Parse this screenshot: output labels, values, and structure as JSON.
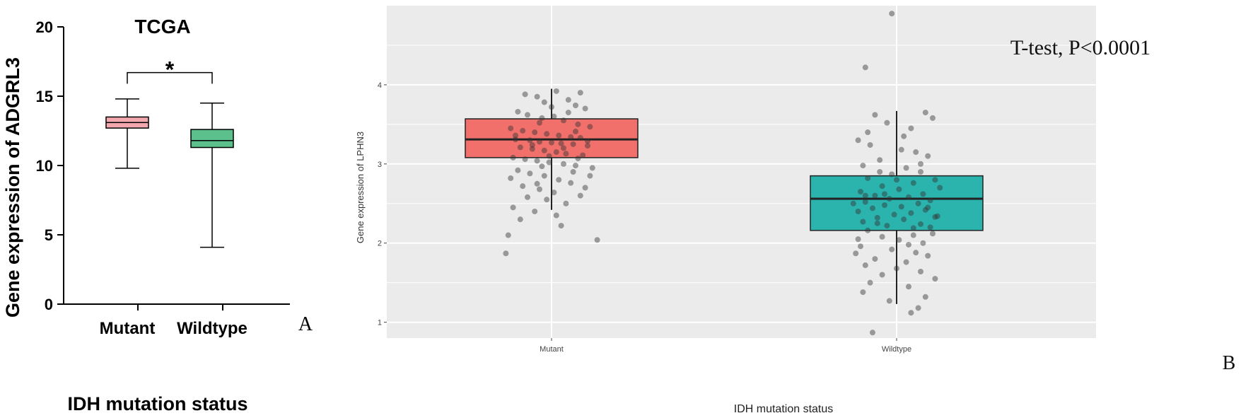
{
  "chart_data": [
    {
      "panel_label": "A",
      "type": "box",
      "title": "TCGA",
      "xlabel": "IDH mutation status",
      "ylabel": "Gene expression of ADGRL3",
      "ylim": [
        0,
        20
      ],
      "yticks": [
        0,
        5,
        10,
        15,
        20
      ],
      "categories": [
        "Mutant",
        "Wildtype"
      ],
      "boxes": [
        {
          "category": "Mutant",
          "min": 9.8,
          "q1": 12.7,
          "median": 13.1,
          "q3": 13.5,
          "max": 14.8,
          "color": "#f4a7ad"
        },
        {
          "category": "Wildtype",
          "min": 4.1,
          "q1": 11.3,
          "median": 11.8,
          "q3": 12.6,
          "max": 14.5,
          "color": "#5cc08c"
        }
      ],
      "significance": {
        "label": "*",
        "y": 16.7
      }
    },
    {
      "panel_label": "B",
      "type": "box",
      "annotation": "T-test, P<0.0001",
      "xlabel": "IDH mutation status",
      "ylabel": "Gene expression of LPHN3",
      "ylim": [
        0.8,
        5
      ],
      "yticks": [
        1,
        2,
        3,
        4
      ],
      "categories": [
        "Mutant",
        "Wildtype"
      ],
      "boxes": [
        {
          "category": "Mutant",
          "min": 2.42,
          "q1": 3.08,
          "median": 3.31,
          "q3": 3.57,
          "max": 3.95,
          "color": "#f1706c"
        },
        {
          "category": "Wildtype",
          "min": 1.23,
          "q1": 2.16,
          "median": 2.56,
          "q3": 2.85,
          "max": 3.67,
          "color": "#2bb3ae"
        }
      ],
      "grid": true,
      "background": "#ebebeb",
      "points": {
        "Mutant": [
          [
            -0.06,
            3.85
          ],
          [
            -0.03,
            3.78
          ],
          [
            0.02,
            3.92
          ],
          [
            0.07,
            3.81
          ],
          [
            0.1,
            3.74
          ],
          [
            0.14,
            3.7
          ],
          [
            -0.14,
            3.66
          ],
          [
            -0.1,
            3.62
          ],
          [
            -0.04,
            3.58
          ],
          [
            0.01,
            3.6
          ],
          [
            0.05,
            3.55
          ],
          [
            0.11,
            3.5
          ],
          [
            0.16,
            3.47
          ],
          [
            -0.17,
            3.45
          ],
          [
            -0.12,
            3.42
          ],
          [
            -0.07,
            3.4
          ],
          [
            -0.02,
            3.38
          ],
          [
            0.03,
            3.36
          ],
          [
            0.08,
            3.34
          ],
          [
            0.12,
            3.33
          ],
          [
            -0.15,
            3.31
          ],
          [
            -0.09,
            3.3
          ],
          [
            -0.05,
            3.28
          ],
          [
            0.0,
            3.27
          ],
          [
            0.04,
            3.26
          ],
          [
            0.09,
            3.25
          ],
          [
            0.15,
            3.23
          ],
          [
            -0.13,
            3.21
          ],
          [
            -0.08,
            3.19
          ],
          [
            -0.03,
            3.17
          ],
          [
            0.02,
            3.15
          ],
          [
            0.06,
            3.13
          ],
          [
            0.13,
            3.11
          ],
          [
            -0.16,
            3.08
          ],
          [
            -0.11,
            3.06
          ],
          [
            -0.06,
            3.04
          ],
          [
            -0.01,
            3.02
          ],
          [
            0.05,
            3.0
          ],
          [
            0.1,
            2.98
          ],
          [
            0.17,
            2.95
          ],
          [
            -0.14,
            2.92
          ],
          [
            -0.09,
            2.88
          ],
          [
            -0.03,
            2.85
          ],
          [
            0.03,
            2.8
          ],
          [
            0.08,
            2.76
          ],
          [
            -0.12,
            2.72
          ],
          [
            -0.05,
            2.68
          ],
          [
            0.01,
            2.64
          ],
          [
            0.14,
            2.7
          ],
          [
            -0.1,
            2.58
          ],
          [
            -0.02,
            2.55
          ],
          [
            0.06,
            2.5
          ],
          [
            -0.16,
            2.45
          ],
          [
            -0.07,
            2.4
          ],
          [
            0.02,
            2.35
          ],
          [
            -0.13,
            2.3
          ],
          [
            0.04,
            2.22
          ],
          [
            -0.18,
            2.1
          ],
          [
            0.19,
            2.04
          ],
          [
            -0.19,
            1.87
          ],
          [
            0.12,
            3.9
          ],
          [
            -0.11,
            3.88
          ],
          [
            0.0,
            3.72
          ],
          [
            0.07,
            3.65
          ],
          [
            -0.05,
            3.52
          ],
          [
            0.1,
            3.41
          ],
          [
            -0.15,
            3.36
          ],
          [
            0.15,
            3.29
          ],
          [
            -0.08,
            3.24
          ],
          [
            0.05,
            3.2
          ],
          [
            -0.01,
            3.1
          ],
          [
            0.11,
            3.07
          ],
          [
            -0.04,
            2.97
          ],
          [
            0.09,
            2.9
          ],
          [
            -0.17,
            2.82
          ],
          [
            0.16,
            2.85
          ],
          [
            -0.06,
            2.75
          ],
          [
            0.12,
            2.6
          ]
        ],
        "Wildtype": [
          [
            -0.02,
            4.9
          ],
          [
            -0.13,
            4.22
          ],
          [
            0.12,
            3.65
          ],
          [
            0.15,
            3.58
          ],
          [
            -0.09,
            3.62
          ],
          [
            -0.04,
            3.52
          ],
          [
            0.06,
            3.45
          ],
          [
            -0.16,
            3.3
          ],
          [
            -0.11,
            3.24
          ],
          [
            0.02,
            3.18
          ],
          [
            0.08,
            3.15
          ],
          [
            0.13,
            3.1
          ],
          [
            -0.07,
            3.05
          ],
          [
            -0.14,
            2.98
          ],
          [
            0.04,
            2.95
          ],
          [
            0.1,
            2.9
          ],
          [
            -0.02,
            2.87
          ],
          [
            -0.12,
            2.82
          ],
          [
            0.16,
            2.8
          ],
          [
            0.07,
            2.76
          ],
          [
            -0.06,
            2.72
          ],
          [
            0.01,
            2.68
          ],
          [
            -0.15,
            2.65
          ],
          [
            0.11,
            2.62
          ],
          [
            -0.09,
            2.6
          ],
          [
            0.05,
            2.58
          ],
          [
            -0.03,
            2.56
          ],
          [
            0.14,
            2.54
          ],
          [
            -0.13,
            2.52
          ],
          [
            0.09,
            2.5
          ],
          [
            -0.05,
            2.48
          ],
          [
            0.02,
            2.46
          ],
          [
            -0.1,
            2.44
          ],
          [
            0.12,
            2.42
          ],
          [
            -0.16,
            2.4
          ],
          [
            0.06,
            2.38
          ],
          [
            -0.01,
            2.36
          ],
          [
            0.17,
            2.34
          ],
          [
            -0.08,
            2.32
          ],
          [
            0.03,
            2.3
          ],
          [
            -0.14,
            2.27
          ],
          [
            0.1,
            2.24
          ],
          [
            -0.04,
            2.22
          ],
          [
            0.07,
            2.19
          ],
          [
            -0.12,
            2.16
          ],
          [
            0.15,
            2.12
          ],
          [
            -0.06,
            2.08
          ],
          [
            0.01,
            2.04
          ],
          [
            0.11,
            2.0
          ],
          [
            -0.15,
            1.96
          ],
          [
            -0.02,
            1.92
          ],
          [
            0.08,
            1.88
          ],
          [
            -0.17,
            1.87
          ],
          [
            0.13,
            1.84
          ],
          [
            -0.09,
            1.8
          ],
          [
            0.04,
            1.76
          ],
          [
            -0.13,
            1.72
          ],
          [
            0.0,
            1.68
          ],
          [
            0.1,
            1.64
          ],
          [
            -0.06,
            1.6
          ],
          [
            0.16,
            1.55
          ],
          [
            -0.11,
            1.5
          ],
          [
            0.05,
            1.45
          ],
          [
            -0.14,
            1.38
          ],
          [
            0.12,
            1.32
          ],
          [
            -0.03,
            1.27
          ],
          [
            0.09,
            1.18
          ],
          [
            0.06,
            1.12
          ],
          [
            -0.1,
            0.87
          ],
          [
            0.18,
            2.7
          ],
          [
            -0.18,
            2.5
          ],
          [
            0.14,
            2.2
          ],
          [
            -0.07,
            2.9
          ],
          [
            0.03,
            3.35
          ],
          [
            -0.12,
            3.4
          ],
          [
            0.1,
            3.0
          ],
          [
            -0.05,
            2.62
          ],
          [
            0.07,
            2.1
          ],
          [
            -0.16,
            2.05
          ],
          [
            0.0,
            2.8
          ],
          [
            0.13,
            2.45
          ],
          [
            -0.08,
            2.25
          ],
          [
            0.05,
            1.98
          ],
          [
            -0.13,
            2.6
          ],
          [
            0.16,
            2.33
          ]
        ]
      }
    }
  ]
}
